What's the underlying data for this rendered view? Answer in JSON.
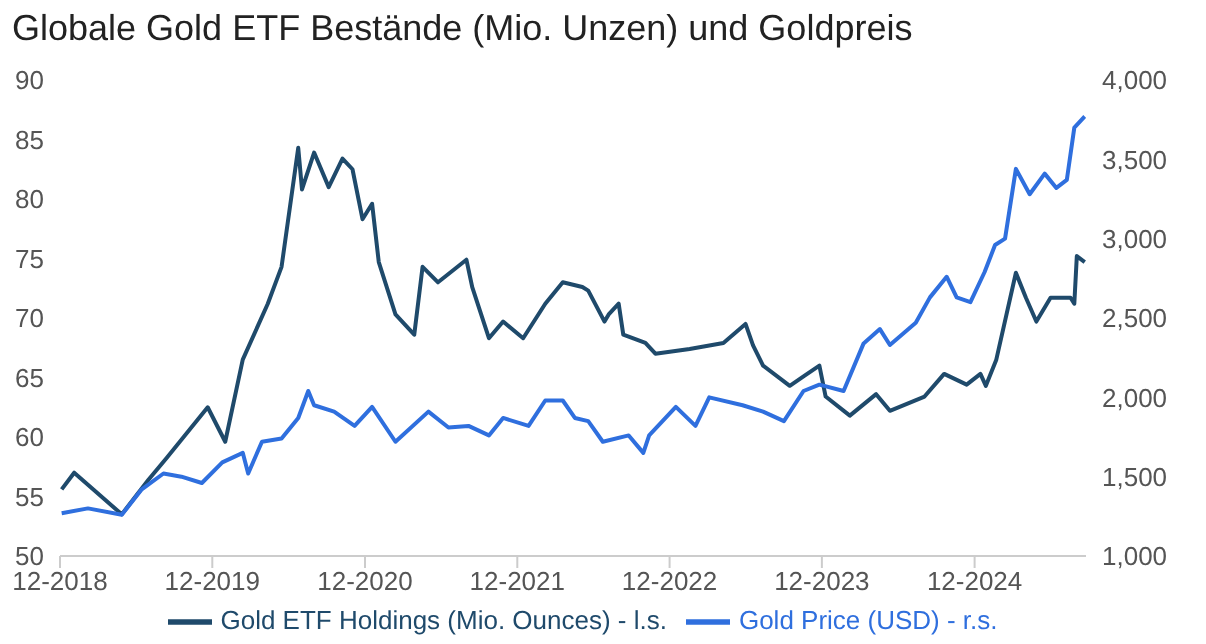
{
  "chart_data": {
    "type": "line",
    "title": "Globale Gold ETF Bestände (Mio. Unzen) und Goldpreis",
    "xlim": [
      "2018-12-01",
      "2025-08-25"
    ],
    "xticks": [
      {
        "value": "2018-12-01",
        "label": "12-2018"
      },
      {
        "value": "2019-12-01",
        "label": "12-2019"
      },
      {
        "value": "2020-12-01",
        "label": "12-2020"
      },
      {
        "value": "2021-12-01",
        "label": "12-2021"
      },
      {
        "value": "2022-12-01",
        "label": "12-2022"
      },
      {
        "value": "2023-12-01",
        "label": "12-2023"
      },
      {
        "value": "2024-12-01",
        "label": "12-2024"
      }
    ],
    "ylim": [
      50,
      90
    ],
    "yticks": [
      50,
      55,
      60,
      65,
      70,
      75,
      80,
      85,
      90
    ],
    "y2lim": [
      1000,
      4000
    ],
    "y2ticks": [
      {
        "value": 1000,
        "label": "1,000"
      },
      {
        "value": 1500,
        "label": "1,500"
      },
      {
        "value": 2000,
        "label": "2,000"
      },
      {
        "value": 2500,
        "label": "2,500"
      },
      {
        "value": 3000,
        "label": "3,000"
      },
      {
        "value": 3500,
        "label": "3,500"
      },
      {
        "value": 4000,
        "label": "4,000"
      }
    ],
    "grid": false,
    "legend": "bottom",
    "marker": "none",
    "line_style": "solid",
    "series": [
      {
        "name": "Gold ETF Holdings (Mio. Ounces) - l.s.",
        "color": "#1f4a6b",
        "x": [
          "2018-12-05",
          "2019-01-04",
          "2019-04-28",
          "2019-07-01",
          "2019-08-15",
          "2019-11-20",
          "2020-01-01",
          "2020-02-12",
          "2020-04-12",
          "2020-05-15",
          "2020-06-24",
          "2020-07-03",
          "2020-08-01",
          "2020-09-05",
          "2020-10-08",
          "2020-11-01",
          "2020-11-25",
          "2020-12-18",
          "2021-01-03",
          "2021-02-12",
          "2021-03-29",
          "2021-04-18",
          "2021-05-25",
          "2021-08-01",
          "2021-08-15",
          "2021-09-24",
          "2021-10-28",
          "2021-12-15",
          "2022-02-06",
          "2022-03-20",
          "2022-05-06",
          "2022-05-20",
          "2022-06-28",
          "2022-07-08",
          "2022-08-01",
          "2022-08-12",
          "2022-10-04",
          "2022-10-28",
          "2023-01-18",
          "2023-04-09",
          "2023-06-01",
          "2023-06-19",
          "2023-07-13",
          "2023-09-15",
          "2023-10-18",
          "2023-11-25",
          "2023-12-10",
          "2024-02-06",
          "2024-04-09",
          "2024-05-12",
          "2024-08-03",
          "2024-09-19",
          "2024-11-12",
          "2024-12-15",
          "2024-12-28",
          "2025-01-22",
          "2025-03-10",
          "2025-04-03",
          "2025-04-28",
          "2025-06-01",
          "2025-07-19",
          "2025-07-28",
          "2025-08-03",
          "2025-08-22"
        ],
        "values": [
          55.6,
          57.0,
          53.5,
          56.4,
          58.3,
          62.5,
          59.6,
          66.5,
          71.2,
          74.3,
          84.3,
          80.8,
          83.9,
          81.0,
          83.4,
          82.5,
          78.3,
          79.6,
          74.7,
          70.3,
          68.6,
          74.3,
          73.0,
          74.9,
          72.6,
          68.3,
          69.7,
          68.3,
          71.2,
          73.0,
          72.6,
          72.3,
          69.7,
          70.3,
          71.2,
          68.6,
          67.9,
          67.0,
          67.4,
          67.9,
          69.5,
          67.7,
          66.0,
          64.3,
          65.1,
          66.0,
          63.4,
          61.8,
          63.6,
          62.2,
          63.4,
          65.3,
          64.4,
          65.3,
          64.3,
          66.5,
          73.8,
          71.7,
          69.7,
          71.7,
          71.7,
          71.2,
          75.2,
          74.7
        ]
      },
      {
        "name": "Gold Price (USD) - r.s.",
        "color": "#2f6fde",
        "axis": "y2",
        "x": [
          "2018-12-05",
          "2019-02-06",
          "2019-04-28",
          "2019-06-15",
          "2019-08-06",
          "2019-09-18",
          "2019-11-06",
          "2019-12-25",
          "2020-02-12",
          "2020-02-25",
          "2020-03-29",
          "2020-05-15",
          "2020-06-24",
          "2020-07-18",
          "2020-08-01",
          "2020-09-18",
          "2020-11-06",
          "2020-12-18",
          "2021-02-12",
          "2021-05-02",
          "2021-06-19",
          "2021-08-06",
          "2021-09-24",
          "2021-10-28",
          "2021-12-28",
          "2022-02-06",
          "2022-03-20",
          "2022-04-18",
          "2022-05-20",
          "2022-06-24",
          "2022-08-25",
          "2022-09-29",
          "2022-10-13",
          "2022-12-16",
          "2023-02-01",
          "2023-03-06",
          "2023-05-25",
          "2023-07-13",
          "2023-09-01",
          "2023-10-18",
          "2023-11-25",
          "2024-01-22",
          "2024-03-10",
          "2024-04-18",
          "2024-05-12",
          "2024-07-13",
          "2024-08-16",
          "2024-09-25",
          "2024-10-19",
          "2024-11-21",
          "2024-12-25",
          "2025-01-19",
          "2025-02-12",
          "2025-03-10",
          "2025-04-12",
          "2025-05-18",
          "2025-06-15",
          "2025-07-10",
          "2025-07-28",
          "2025-08-22"
        ],
        "values": [
          1270,
          1300,
          1260,
          1420,
          1520,
          1500,
          1460,
          1590,
          1650,
          1520,
          1720,
          1740,
          1870,
          2040,
          1950,
          1910,
          1820,
          1940,
          1720,
          1910,
          1810,
          1820,
          1760,
          1870,
          1820,
          1980,
          1980,
          1870,
          1850,
          1720,
          1760,
          1650,
          1760,
          1940,
          1820,
          2000,
          1950,
          1910,
          1850,
          2040,
          2080,
          2040,
          2340,
          2430,
          2330,
          2470,
          2630,
          2760,
          2630,
          2600,
          2790,
          2960,
          3000,
          3440,
          3280,
          3410,
          3320,
          3370,
          3700,
          3770
        ]
      }
    ]
  }
}
